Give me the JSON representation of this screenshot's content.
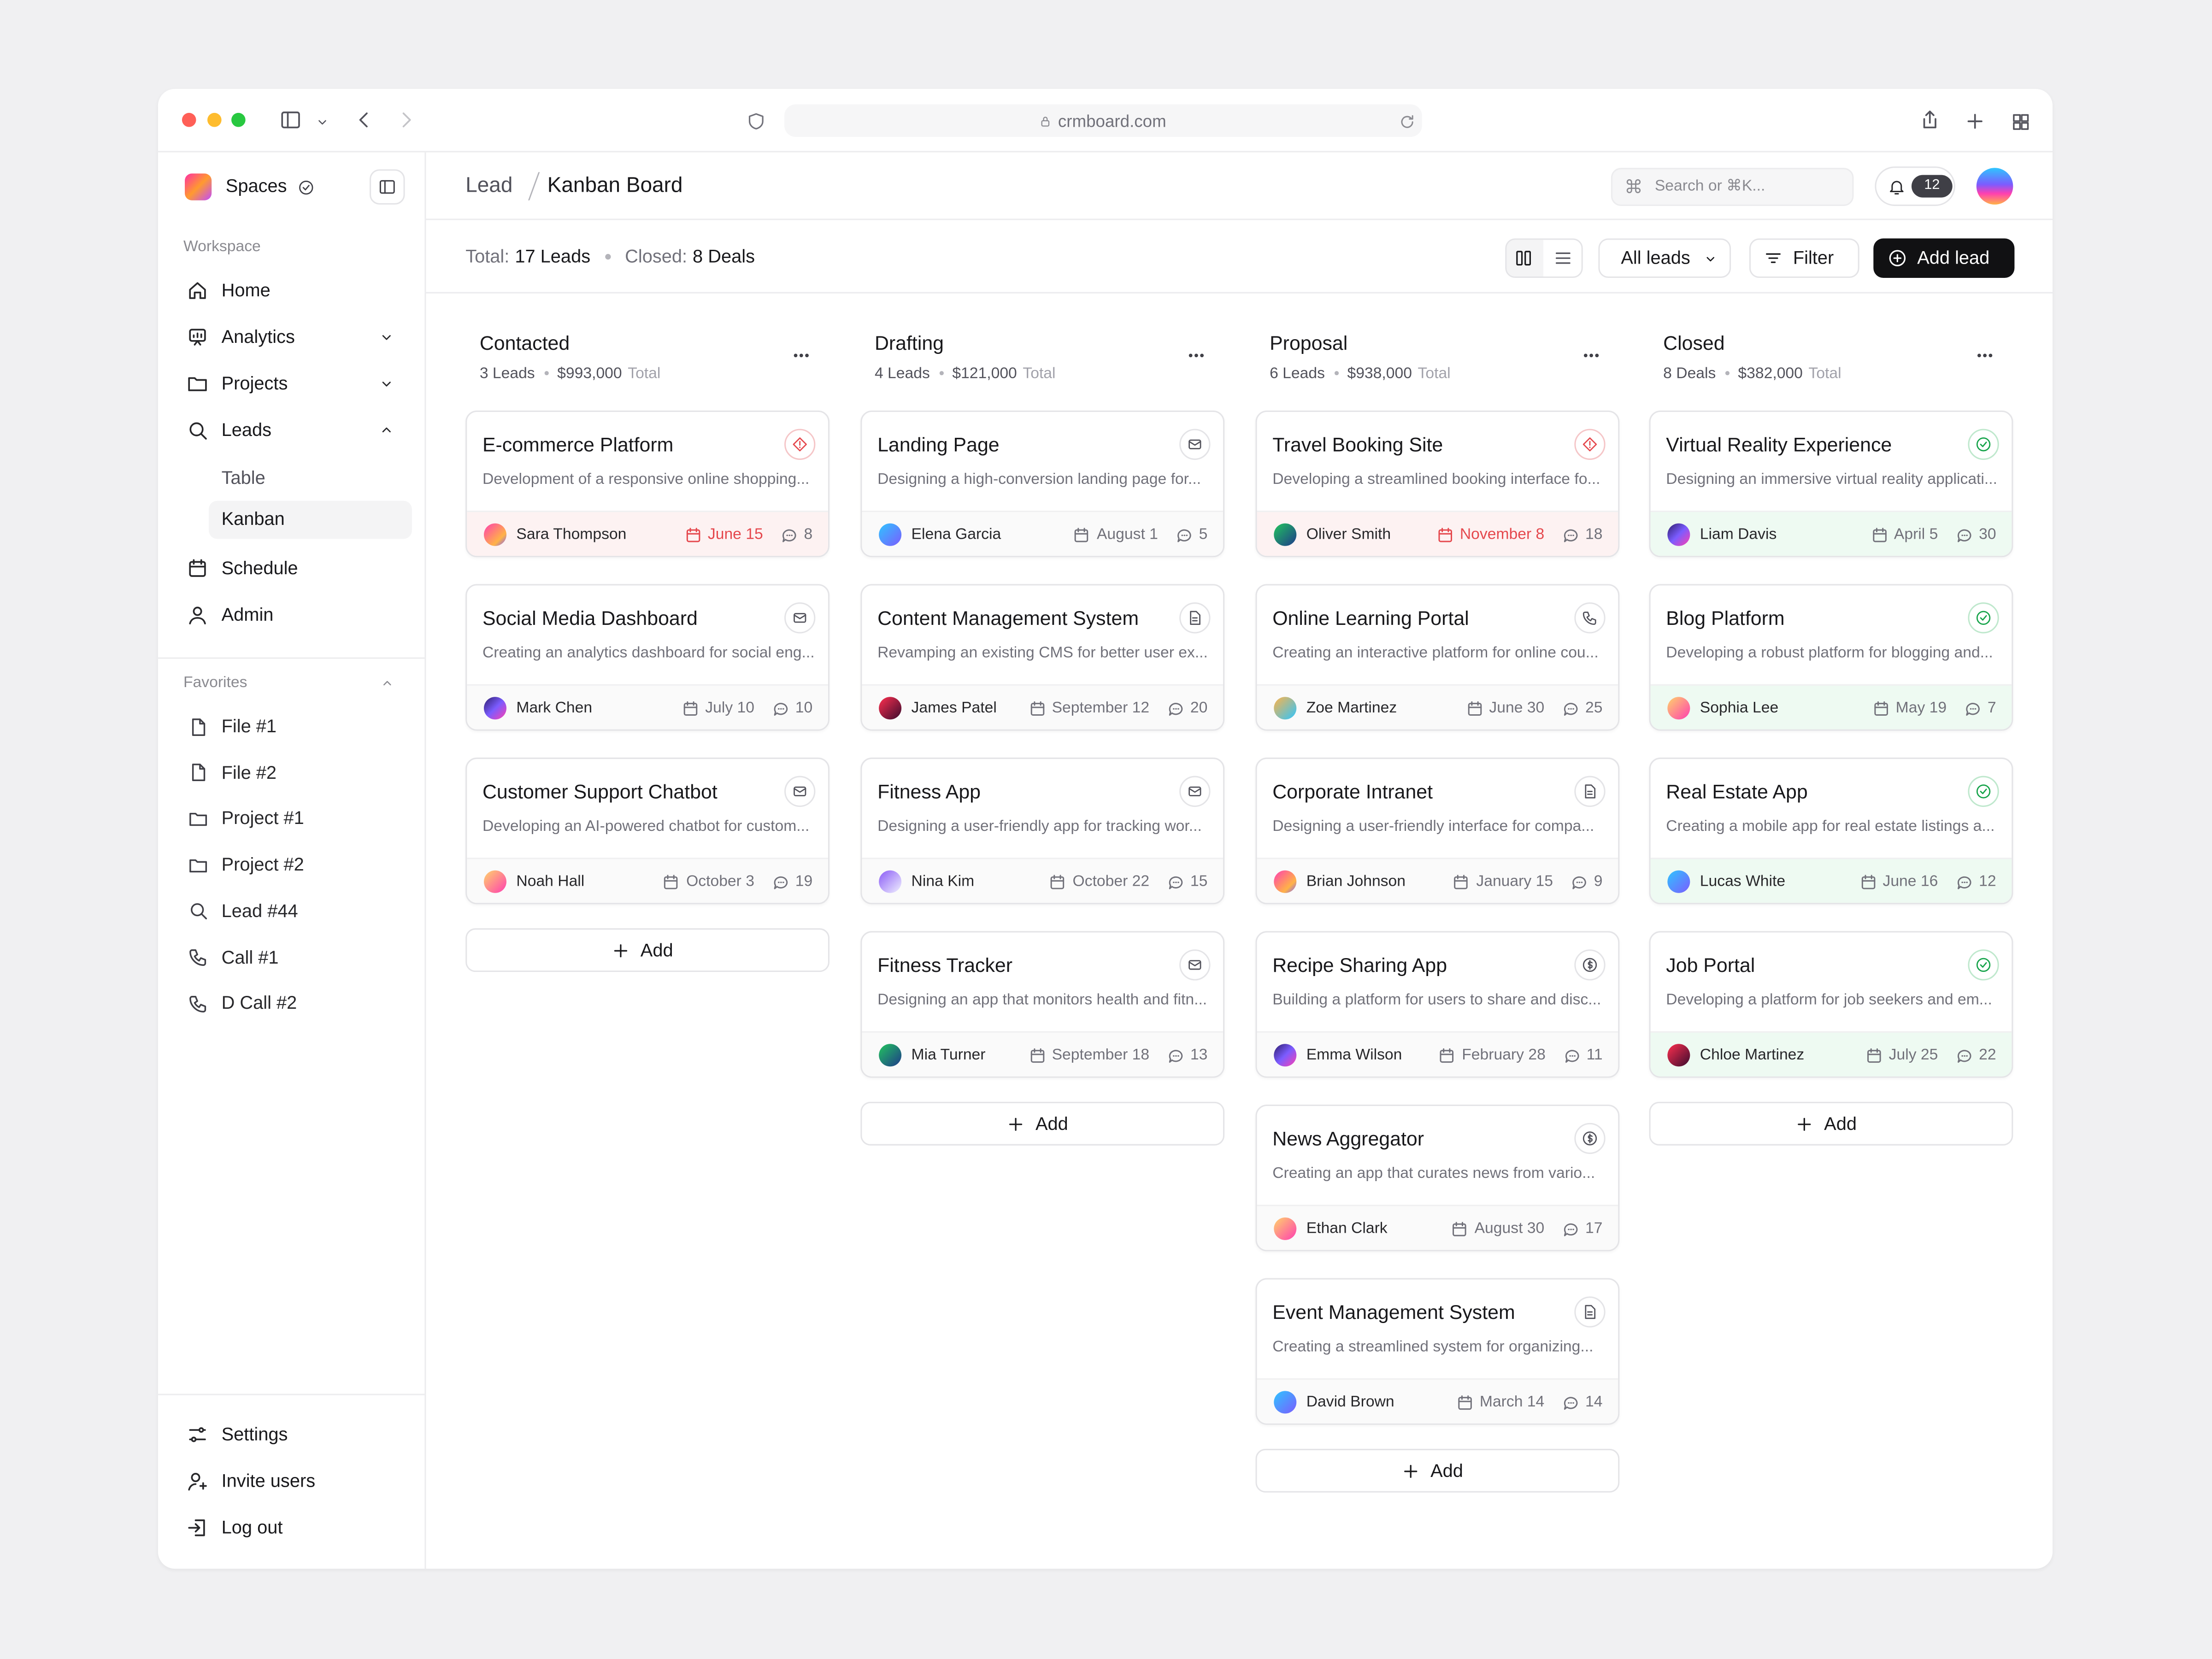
{
  "browser": {
    "url": "crmboard.com"
  },
  "sidebar": {
    "workspace_name": "Spaces",
    "section_label": "Workspace",
    "nav": [
      "Home",
      "Analytics",
      "Projects",
      "Leads"
    ],
    "leads_sub": [
      "Table",
      "Kanban"
    ],
    "nav_after": [
      "Schedule",
      "Admin"
    ],
    "favorites_label": "Favorites",
    "favorites": [
      "File #1",
      "File #2",
      "Project #1",
      "Project #2",
      "Lead #44",
      "Call #1",
      "D Call #2"
    ],
    "footer": [
      "Settings",
      "Invite users",
      "Log out"
    ]
  },
  "header": {
    "breadcrumb": [
      "Lead",
      "Kanban Board"
    ],
    "search_placeholder": "Search or ⌘K...",
    "notifications": 12
  },
  "toolbar": {
    "total_label": "Total:",
    "total_value": "17 Leads",
    "closed_label": "Closed:",
    "closed_value": "8 Deals",
    "filter_select": "All leads",
    "filter_button": "Filter",
    "add_button": "Add lead"
  },
  "board": {
    "total_suffix": "Total",
    "add_label": "Add",
    "columns": [
      {
        "title": "Contacted",
        "count": "3 Leads",
        "amount": "$993,000",
        "cards": [
          {
            "title": "E-commerce Platform",
            "description": "Development of a responsive online shopping...",
            "owner": "Sara Thompson",
            "date": "June 15",
            "comments": 8,
            "icon": "alert",
            "status": "overdue"
          },
          {
            "title": "Social Media Dashboard",
            "description": "Creating an analytics dashboard for social eng...",
            "owner": "Mark Chen",
            "date": "July 10",
            "comments": 10,
            "icon": "mail",
            "status": "open"
          },
          {
            "title": "Customer Support Chatbot",
            "description": "Developing an AI-powered chatbot for custom...",
            "owner": "Noah Hall",
            "date": "October 3",
            "comments": 19,
            "icon": "mail",
            "status": "open"
          }
        ]
      },
      {
        "title": "Drafting",
        "count": "4 Leads",
        "amount": "$121,000",
        "cards": [
          {
            "title": "Landing Page",
            "description": "Designing a high-conversion landing page for...",
            "owner": "Elena Garcia",
            "date": "August 1",
            "comments": 5,
            "icon": "mail",
            "status": "open"
          },
          {
            "title": "Content Management System",
            "description": "Revamping an existing CMS for better user ex...",
            "owner": "James Patel",
            "date": "September 12",
            "comments": 20,
            "icon": "doc",
            "status": "open"
          },
          {
            "title": "Fitness App",
            "description": "Designing a user-friendly app for tracking wor...",
            "owner": "Nina Kim",
            "date": "October 22",
            "comments": 15,
            "icon": "mail",
            "status": "open"
          },
          {
            "title": "Fitness Tracker",
            "description": "Designing an app that monitors health and fitn...",
            "owner": "Mia Turner",
            "date": "September 18",
            "comments": 13,
            "icon": "mail",
            "status": "open"
          }
        ]
      },
      {
        "title": "Proposal",
        "count": "6 Leads",
        "amount": "$938,000",
        "cards": [
          {
            "title": "Travel Booking Site",
            "description": "Developing a streamlined booking interface fo...",
            "owner": "Oliver Smith",
            "date": "November 8",
            "comments": 18,
            "icon": "alert",
            "status": "overdue"
          },
          {
            "title": "Online Learning Portal",
            "description": "Creating an interactive platform for online cou...",
            "owner": "Zoe Martinez",
            "date": "June 30",
            "comments": 25,
            "icon": "phone",
            "status": "open"
          },
          {
            "title": "Corporate Intranet",
            "description": "Designing a user-friendly interface for compa...",
            "owner": "Brian Johnson",
            "date": "January 15",
            "comments": 9,
            "icon": "doc",
            "status": "open"
          },
          {
            "title": "Recipe Sharing App",
            "description": "Building a platform for users to share and disc...",
            "owner": "Emma Wilson",
            "date": "February 28",
            "comments": 11,
            "icon": "dollar",
            "status": "open"
          },
          {
            "title": "News Aggregator",
            "description": "Creating an app that curates news from vario...",
            "owner": "Ethan Clark",
            "date": "August 30",
            "comments": 17,
            "icon": "dollar",
            "status": "open"
          },
          {
            "title": "Event Management System",
            "description": "Creating a streamlined system for organizing...",
            "owner": "David Brown",
            "date": "March 14",
            "comments": 14,
            "icon": "doc",
            "status": "open"
          }
        ]
      },
      {
        "title": "Closed",
        "count": "8 Deals",
        "amount": "$382,000",
        "cards": [
          {
            "title": "Virtual Reality Experience",
            "description": "Designing an immersive virtual reality applicati...",
            "owner": "Liam Davis",
            "date": "April 5",
            "comments": 30,
            "icon": "check",
            "status": "won"
          },
          {
            "title": "Blog Platform",
            "description": "Developing a robust platform for blogging and...",
            "owner": "Sophia Lee",
            "date": "May 19",
            "comments": 7,
            "icon": "check",
            "status": "won"
          },
          {
            "title": "Real Estate App",
            "description": "Creating a mobile app for real estate listings a...",
            "owner": "Lucas White",
            "date": "June 16",
            "comments": 12,
            "icon": "check",
            "status": "won"
          },
          {
            "title": "Job Portal",
            "description": "Developing a platform for job seekers and em...",
            "owner": "Chloe Martinez",
            "date": "July 25",
            "comments": 22,
            "icon": "check",
            "status": "won"
          }
        ]
      }
    ]
  }
}
